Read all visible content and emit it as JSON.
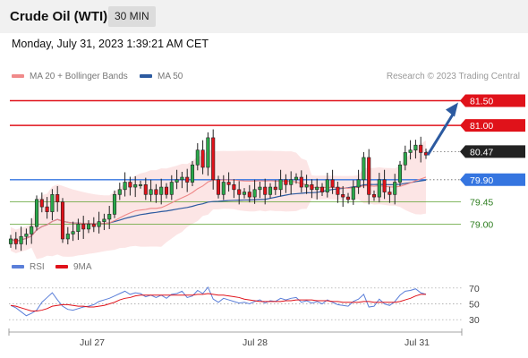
{
  "header": {
    "title": "Crude Oil (WTI)",
    "timeframe": "30 MIN"
  },
  "timestamp": "Monday, July 31, 2023 1:39:21 AM CET",
  "legend": {
    "ma": "MA 20 + Bollinger Bands",
    "ma50": "MA 50",
    "credit": "Research © 2023 Trading Central"
  },
  "rsi_legend": {
    "rsi": "RSI",
    "ma9": "9MA"
  },
  "colors": {
    "resistance": "#e0121a",
    "support": "#5aa02c",
    "pivot": "#3575e0",
    "price": "#222222",
    "bull": "#2aa84a",
    "bear": "#e0121a",
    "ma": "#ee8888",
    "ma50": "#2c5aa0"
  },
  "chart_data": [
    {
      "type": "candlestick",
      "x_ticks": [
        "Jul 27",
        "Jul 28",
        "Jul 31"
      ],
      "levels": [
        {
          "value": 81.5,
          "label": "81.50",
          "kind": "resistance"
        },
        {
          "value": 81.0,
          "label": "81.00",
          "kind": "resistance"
        },
        {
          "value": 80.47,
          "label": "80.47",
          "kind": "last-price"
        },
        {
          "value": 79.9,
          "label": "79.90",
          "kind": "pivot"
        },
        {
          "value": 79.45,
          "label": "79.45",
          "kind": "support"
        },
        {
          "value": 79.0,
          "label": "79.00",
          "kind": "support"
        }
      ],
      "forecast": {
        "direction": "up",
        "target": 81.5
      },
      "close": [
        78.7,
        78.6,
        78.75,
        78.8,
        78.95,
        79.5,
        79.35,
        79.25,
        79.6,
        79.45,
        78.7,
        78.8,
        78.85,
        79.0,
        78.9,
        79.0,
        78.95,
        79.05,
        79.1,
        79.2,
        79.6,
        79.7,
        79.85,
        79.75,
        79.8,
        79.8,
        79.6,
        79.7,
        79.6,
        79.75,
        79.6,
        79.85,
        79.9,
        79.95,
        79.85,
        80.2,
        80.5,
        80.15,
        80.75,
        79.9,
        79.6,
        79.85,
        79.8,
        79.7,
        79.6,
        79.65,
        79.55,
        79.7,
        79.75,
        79.6,
        79.75,
        79.7,
        79.9,
        79.8,
        79.9,
        79.95,
        79.75,
        79.8,
        79.7,
        79.75,
        79.65,
        79.9,
        79.75,
        79.6,
        79.55,
        79.5,
        79.75,
        79.9,
        80.35,
        79.6,
        79.55,
        79.9,
        79.65,
        79.6,
        79.85,
        80.2,
        80.45,
        80.5,
        80.6,
        80.45,
        80.4
      ],
      "ylim": [
        78.5,
        81.8
      ]
    },
    {
      "type": "line",
      "series": [
        {
          "name": "RSI"
        },
        {
          "name": "9MA"
        }
      ],
      "y_ticks": [
        70,
        50,
        30
      ],
      "rsi": [
        48,
        45,
        40,
        35,
        38,
        42,
        52,
        58,
        64,
        55,
        47,
        43,
        42,
        44,
        46,
        47,
        49,
        53,
        55,
        57,
        60,
        63,
        66,
        62,
        64,
        63,
        59,
        61,
        58,
        61,
        57,
        62,
        63,
        66,
        58,
        60,
        67,
        63,
        71,
        56,
        52,
        57,
        55,
        53,
        51,
        52,
        50,
        53,
        55,
        51,
        54,
        53,
        57,
        55,
        57,
        58,
        52,
        54,
        51,
        53,
        50,
        55,
        52,
        49,
        48,
        47,
        53,
        56,
        62,
        46,
        47,
        56,
        50,
        48,
        53,
        61,
        66,
        67,
        69,
        64,
        62
      ],
      "ma9": [
        48,
        47,
        45,
        43,
        41,
        41,
        42,
        44,
        47,
        48,
        49,
        49,
        48,
        47,
        47,
        46,
        46,
        47,
        48,
        50,
        52,
        55,
        57,
        58,
        60,
        61,
        61,
        61,
        61,
        61,
        61,
        61,
        61,
        61,
        61,
        61,
        62,
        62,
        63,
        62,
        61,
        61,
        60,
        59,
        58,
        56,
        55,
        54,
        53,
        53,
        53,
        53,
        53,
        54,
        54,
        55,
        55,
        55,
        55,
        54,
        54,
        54,
        53,
        53,
        52,
        52,
        52,
        52,
        53,
        53,
        52,
        52,
        52,
        52,
        52,
        53,
        55,
        57,
        60,
        62,
        62
      ],
      "ylim": [
        20,
        80
      ]
    }
  ]
}
